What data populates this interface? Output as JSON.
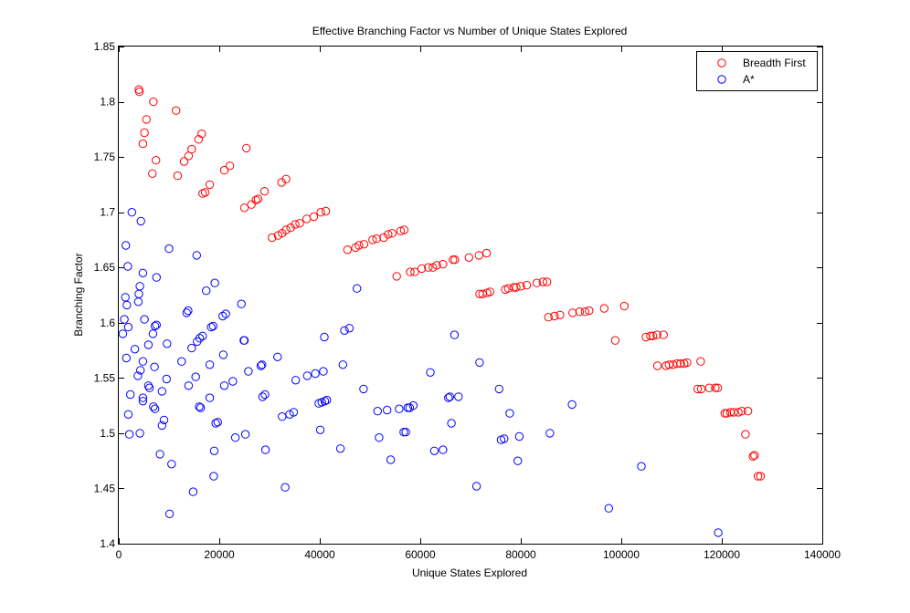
{
  "chart_data": {
    "type": "scatter",
    "title": "Effective Branching Factor vs Number of Unique States Explored",
    "xlabel": "Unique States Explored",
    "ylabel": "Branching Factor",
    "xlim": [
      0,
      140000
    ],
    "ylim": [
      1.4,
      1.85
    ],
    "grid": false,
    "legend_position": "top-right",
    "x_ticks": [
      0,
      20000,
      40000,
      60000,
      80000,
      100000,
      120000,
      140000
    ],
    "x_tick_labels": [
      "0",
      "20000",
      "40000",
      "60000",
      "80000",
      "100000",
      "120000",
      "140000"
    ],
    "y_ticks": [
      1.4,
      1.45,
      1.5,
      1.55,
      1.6,
      1.65,
      1.7,
      1.75,
      1.8,
      1.85
    ],
    "y_tick_labels": [
      "1.4",
      "1.45",
      "1.5",
      "1.55",
      "1.6",
      "1.65",
      "1.7",
      "1.75",
      "1.8",
      "1.85"
    ],
    "series": [
      {
        "name": "Breadth First",
        "color": "#ff0000",
        "marker": "circle-open",
        "points": [
          [
            4000,
            1.811
          ],
          [
            4100,
            1.809
          ],
          [
            6900,
            1.8
          ],
          [
            11400,
            1.792
          ],
          [
            5500,
            1.784
          ],
          [
            16500,
            1.771
          ],
          [
            5100,
            1.772
          ],
          [
            15900,
            1.766
          ],
          [
            4800,
            1.762
          ],
          [
            25400,
            1.758
          ],
          [
            14500,
            1.757
          ],
          [
            13900,
            1.751
          ],
          [
            7400,
            1.747
          ],
          [
            13000,
            1.746
          ],
          [
            22100,
            1.742
          ],
          [
            21000,
            1.738
          ],
          [
            6700,
            1.735
          ],
          [
            11700,
            1.733
          ],
          [
            33300,
            1.73
          ],
          [
            32400,
            1.727
          ],
          [
            18100,
            1.725
          ],
          [
            17200,
            1.718
          ],
          [
            16700,
            1.717
          ],
          [
            29000,
            1.719
          ],
          [
            27700,
            1.712
          ],
          [
            27300,
            1.711
          ],
          [
            26400,
            1.707
          ],
          [
            25000,
            1.704
          ],
          [
            41200,
            1.701
          ],
          [
            40200,
            1.7
          ],
          [
            38800,
            1.696
          ],
          [
            37400,
            1.694
          ],
          [
            36000,
            1.69
          ],
          [
            35100,
            1.689
          ],
          [
            34200,
            1.686
          ],
          [
            33300,
            1.684
          ],
          [
            32500,
            1.681
          ],
          [
            31700,
            1.679
          ],
          [
            30500,
            1.677
          ],
          [
            56800,
            1.684
          ],
          [
            56100,
            1.683
          ],
          [
            54400,
            1.681
          ],
          [
            53600,
            1.68
          ],
          [
            52700,
            1.677
          ],
          [
            51300,
            1.676
          ],
          [
            50500,
            1.675
          ],
          [
            48800,
            1.671
          ],
          [
            47800,
            1.67
          ],
          [
            47100,
            1.668
          ],
          [
            45500,
            1.666
          ],
          [
            73200,
            1.663
          ],
          [
            71700,
            1.661
          ],
          [
            69700,
            1.659
          ],
          [
            66900,
            1.657
          ],
          [
            66500,
            1.657
          ],
          [
            64500,
            1.653
          ],
          [
            63300,
            1.652
          ],
          [
            62500,
            1.65
          ],
          [
            61600,
            1.65
          ],
          [
            60300,
            1.649
          ],
          [
            58900,
            1.646
          ],
          [
            58000,
            1.646
          ],
          [
            55300,
            1.642
          ],
          [
            85200,
            1.637
          ],
          [
            84400,
            1.637
          ],
          [
            83200,
            1.636
          ],
          [
            81200,
            1.634
          ],
          [
            80000,
            1.633
          ],
          [
            79100,
            1.632
          ],
          [
            78600,
            1.632
          ],
          [
            77500,
            1.631
          ],
          [
            76900,
            1.63
          ],
          [
            73900,
            1.628
          ],
          [
            73300,
            1.627
          ],
          [
            72400,
            1.626
          ],
          [
            71800,
            1.626
          ],
          [
            100600,
            1.615
          ],
          [
            96600,
            1.613
          ],
          [
            93600,
            1.611
          ],
          [
            92800,
            1.61
          ],
          [
            91700,
            1.61
          ],
          [
            90300,
            1.609
          ],
          [
            87800,
            1.607
          ],
          [
            86700,
            1.606
          ],
          [
            85500,
            1.605
          ],
          [
            108400,
            1.589
          ],
          [
            107100,
            1.589
          ],
          [
            106300,
            1.588
          ],
          [
            105800,
            1.588
          ],
          [
            104900,
            1.587
          ],
          [
            98800,
            1.584
          ],
          [
            115800,
            1.565
          ],
          [
            113100,
            1.564
          ],
          [
            112500,
            1.563
          ],
          [
            111800,
            1.563
          ],
          [
            111100,
            1.563
          ],
          [
            110300,
            1.562
          ],
          [
            109500,
            1.562
          ],
          [
            108900,
            1.561
          ],
          [
            107200,
            1.561
          ],
          [
            115900,
            1.54
          ],
          [
            115200,
            1.54
          ],
          [
            119200,
            1.541
          ],
          [
            118700,
            1.541
          ],
          [
            117500,
            1.541
          ],
          [
            125200,
            1.52
          ],
          [
            124000,
            1.52
          ],
          [
            123300,
            1.519
          ],
          [
            122400,
            1.519
          ],
          [
            121700,
            1.519
          ],
          [
            121000,
            1.518
          ],
          [
            120600,
            1.518
          ],
          [
            124700,
            1.499
          ],
          [
            126500,
            1.48
          ],
          [
            126200,
            1.479
          ],
          [
            127700,
            1.461
          ],
          [
            127200,
            1.461
          ]
        ]
      },
      {
        "name": "A*",
        "color": "#0000ff",
        "marker": "circle-open",
        "points": [
          [
            2600,
            1.7
          ],
          [
            4400,
            1.692
          ],
          [
            1400,
            1.67
          ],
          [
            10000,
            1.667
          ],
          [
            15500,
            1.661
          ],
          [
            1800,
            1.651
          ],
          [
            4800,
            1.645
          ],
          [
            7500,
            1.641
          ],
          [
            19100,
            1.636
          ],
          [
            4200,
            1.633
          ],
          [
            17400,
            1.629
          ],
          [
            4000,
            1.626
          ],
          [
            1300,
            1.623
          ],
          [
            3900,
            1.619
          ],
          [
            1600,
            1.616
          ],
          [
            24400,
            1.617
          ],
          [
            13800,
            1.611
          ],
          [
            13500,
            1.609
          ],
          [
            21300,
            1.608
          ],
          [
            20700,
            1.606
          ],
          [
            1100,
            1.603
          ],
          [
            5100,
            1.603
          ],
          [
            7500,
            1.598
          ],
          [
            7200,
            1.597
          ],
          [
            18800,
            1.597
          ],
          [
            18400,
            1.596
          ],
          [
            1900,
            1.596
          ],
          [
            800,
            1.59
          ],
          [
            6800,
            1.59
          ],
          [
            16700,
            1.588
          ],
          [
            16100,
            1.586
          ],
          [
            15600,
            1.583
          ],
          [
            25000,
            1.584
          ],
          [
            24900,
            1.584
          ],
          [
            5900,
            1.58
          ],
          [
            9600,
            1.581
          ],
          [
            14500,
            1.577
          ],
          [
            3200,
            1.576
          ],
          [
            20800,
            1.571
          ],
          [
            31600,
            1.569
          ],
          [
            1500,
            1.568
          ],
          [
            4800,
            1.565
          ],
          [
            12500,
            1.565
          ],
          [
            18100,
            1.562
          ],
          [
            28500,
            1.562
          ],
          [
            28300,
            1.561
          ],
          [
            7100,
            1.56
          ],
          [
            4300,
            1.557
          ],
          [
            25800,
            1.556
          ],
          [
            3800,
            1.552
          ],
          [
            15300,
            1.551
          ],
          [
            9500,
            1.549
          ],
          [
            22700,
            1.547
          ],
          [
            21000,
            1.543
          ],
          [
            13900,
            1.543
          ],
          [
            5900,
            1.543
          ],
          [
            6100,
            1.541
          ],
          [
            8600,
            1.538
          ],
          [
            2300,
            1.535
          ],
          [
            29100,
            1.535
          ],
          [
            28600,
            1.533
          ],
          [
            4800,
            1.532
          ],
          [
            18100,
            1.532
          ],
          [
            4800,
            1.529
          ],
          [
            16000,
            1.524
          ],
          [
            16300,
            1.523
          ],
          [
            6900,
            1.524
          ],
          [
            7200,
            1.522
          ],
          [
            1900,
            1.517
          ],
          [
            9000,
            1.512
          ],
          [
            19700,
            1.51
          ],
          [
            19300,
            1.509
          ],
          [
            8600,
            1.507
          ],
          [
            4200,
            1.5
          ],
          [
            2100,
            1.499
          ],
          [
            25200,
            1.499
          ],
          [
            23200,
            1.496
          ],
          [
            29200,
            1.485
          ],
          [
            19000,
            1.484
          ],
          [
            8200,
            1.481
          ],
          [
            10500,
            1.472
          ],
          [
            18900,
            1.461
          ],
          [
            14800,
            1.447
          ],
          [
            10100,
            1.427
          ],
          [
            33100,
            1.451
          ],
          [
            32500,
            1.515
          ],
          [
            34000,
            1.517
          ],
          [
            34800,
            1.519
          ],
          [
            35200,
            1.548
          ],
          [
            37500,
            1.552
          ],
          [
            39100,
            1.554
          ],
          [
            39800,
            1.527
          ],
          [
            40400,
            1.528
          ],
          [
            40700,
            1.556
          ],
          [
            41000,
            1.529
          ],
          [
            41400,
            1.53
          ],
          [
            40900,
            1.587
          ],
          [
            40100,
            1.503
          ],
          [
            44100,
            1.486
          ],
          [
            44600,
            1.562
          ],
          [
            44900,
            1.593
          ],
          [
            45900,
            1.595
          ],
          [
            47400,
            1.631
          ],
          [
            48700,
            1.54
          ],
          [
            51500,
            1.52
          ],
          [
            51800,
            1.496
          ],
          [
            53400,
            1.521
          ],
          [
            54100,
            1.476
          ],
          [
            55800,
            1.522
          ],
          [
            56700,
            1.501
          ],
          [
            57100,
            1.501
          ],
          [
            57500,
            1.523
          ],
          [
            57900,
            1.523
          ],
          [
            58600,
            1.525
          ],
          [
            62000,
            1.555
          ],
          [
            62800,
            1.484
          ],
          [
            64500,
            1.485
          ],
          [
            65600,
            1.532
          ],
          [
            65900,
            1.533
          ],
          [
            66200,
            1.509
          ],
          [
            66800,
            1.589
          ],
          [
            67600,
            1.533
          ],
          [
            71200,
            1.452
          ],
          [
            71800,
            1.564
          ],
          [
            75700,
            1.54
          ],
          [
            76100,
            1.494
          ],
          [
            76700,
            1.495
          ],
          [
            77800,
            1.518
          ],
          [
            79400,
            1.475
          ],
          [
            79700,
            1.497
          ],
          [
            85800,
            1.5
          ],
          [
            90200,
            1.526
          ],
          [
            97500,
            1.432
          ],
          [
            104000,
            1.47
          ],
          [
            119300,
            1.41
          ]
        ]
      }
    ]
  }
}
